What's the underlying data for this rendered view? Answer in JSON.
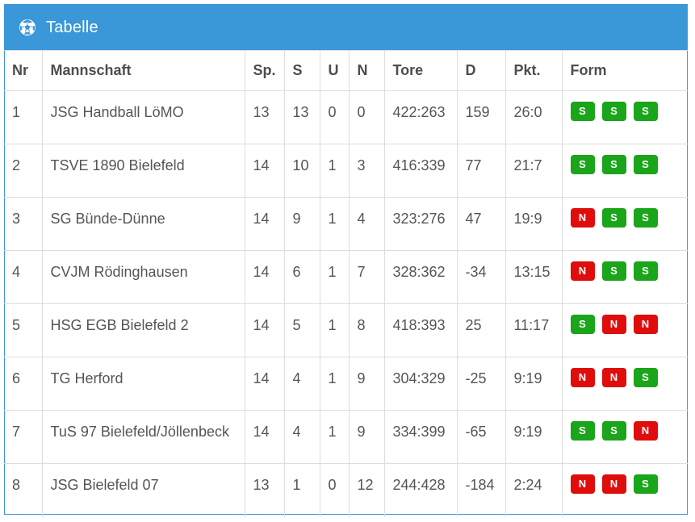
{
  "header": {
    "title": "Tabelle",
    "icon": "soccer-ball-icon",
    "color": "#3a97d8"
  },
  "columns": [
    "Nr",
    "Mannschaft",
    "Sp.",
    "S",
    "U",
    "N",
    "Tore",
    "D",
    "Pkt.",
    "Form"
  ],
  "rows": [
    {
      "nr": "1",
      "team": "JSG Handball LöMO",
      "sp": "13",
      "s": "13",
      "u": "0",
      "n": "0",
      "tore": "422:263",
      "d": "159",
      "pkt": "26:0",
      "form": [
        "S",
        "S",
        "S"
      ]
    },
    {
      "nr": "2",
      "team": "TSVE 1890 Bielefeld",
      "sp": "14",
      "s": "10",
      "u": "1",
      "n": "3",
      "tore": "416:339",
      "d": "77",
      "pkt": "21:7",
      "form": [
        "S",
        "S",
        "S"
      ]
    },
    {
      "nr": "3",
      "team": "SG Bünde-Dünne",
      "sp": "14",
      "s": "9",
      "u": "1",
      "n": "4",
      "tore": "323:276",
      "d": "47",
      "pkt": "19:9",
      "form": [
        "N",
        "S",
        "S"
      ]
    },
    {
      "nr": "4",
      "team": "CVJM Rödinghausen",
      "sp": "14",
      "s": "6",
      "u": "1",
      "n": "7",
      "tore": "328:362",
      "d": "-34",
      "pkt": "13:15",
      "form": [
        "N",
        "S",
        "S"
      ]
    },
    {
      "nr": "5",
      "team": "HSG EGB Bielefeld 2",
      "sp": "14",
      "s": "5",
      "u": "1",
      "n": "8",
      "tore": "418:393",
      "d": "25",
      "pkt": "11:17",
      "form": [
        "S",
        "N",
        "N"
      ]
    },
    {
      "nr": "6",
      "team": "TG Herford",
      "sp": "14",
      "s": "4",
      "u": "1",
      "n": "9",
      "tore": "304:329",
      "d": "-25",
      "pkt": "9:19",
      "form": [
        "N",
        "N",
        "S"
      ]
    },
    {
      "nr": "7",
      "team": "TuS 97 Bielefeld/Jöllenbeck",
      "sp": "14",
      "s": "4",
      "u": "1",
      "n": "9",
      "tore": "334:399",
      "d": "-65",
      "pkt": "9:19",
      "form": [
        "S",
        "S",
        "N"
      ]
    },
    {
      "nr": "8",
      "team": "JSG Bielefeld 07",
      "sp": "13",
      "s": "1",
      "u": "0",
      "n": "12",
      "tore": "244:428",
      "d": "-184",
      "pkt": "2:24",
      "form": [
        "N",
        "N",
        "S"
      ]
    }
  ],
  "form_colors": {
    "S": "#1aa51a",
    "N": "#e00d0d"
  }
}
